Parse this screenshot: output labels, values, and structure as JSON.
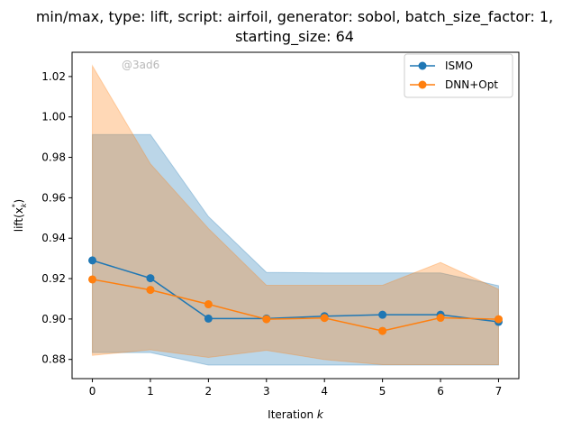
{
  "chart_data": {
    "type": "line",
    "title_line1": "min/max, type: lift, script: airfoil, generator: sobol, batch_size_factor: 1,",
    "title_line2": "starting_size: 64",
    "xlabel": "Iteration ",
    "xlabel_var": "k",
    "ylabel": "lift(x",
    "ylabel_sub": "k",
    "ylabel_sup": "*",
    "ylabel_close": ")",
    "watermark": "@3ad6",
    "xlim": [
      -0.35,
      7.35
    ],
    "ylim": [
      0.8705,
      1.032
    ],
    "x": [
      0,
      1,
      2,
      3,
      4,
      5,
      6,
      7
    ],
    "x_ticks": [
      "0",
      "1",
      "2",
      "3",
      "4",
      "5",
      "6",
      "7"
    ],
    "y_ticks": [
      "0.88",
      "0.90",
      "0.92",
      "0.94",
      "0.96",
      "0.98",
      "1.00",
      "1.02"
    ],
    "legend_position": "top-right",
    "series": [
      {
        "name": "ISMO",
        "color": "#1f77b4",
        "values": [
          0.929,
          0.9202,
          0.9002,
          0.9002,
          0.9014,
          0.9021,
          0.9021,
          0.8986
        ],
        "min": [
          0.8834,
          0.8834,
          0.8772,
          0.8772,
          0.8772,
          0.8772,
          0.8772,
          0.8772
        ],
        "max": [
          0.9913,
          0.9913,
          0.9507,
          0.9231,
          0.9228,
          0.9228,
          0.9228,
          0.9165
        ]
      },
      {
        "name": "DNN+Opt",
        "color": "#ff7f0e",
        "values": [
          0.9196,
          0.9144,
          0.9073,
          0.8999,
          0.9005,
          0.8941,
          0.9006,
          0.8999
        ],
        "min": [
          0.882,
          0.8848,
          0.881,
          0.8845,
          0.8799,
          0.8774,
          0.8774,
          0.8774
        ],
        "max": [
          1.0253,
          0.9768,
          0.9448,
          0.9167,
          0.9167,
          0.9167,
          0.928,
          0.9147
        ]
      }
    ]
  }
}
